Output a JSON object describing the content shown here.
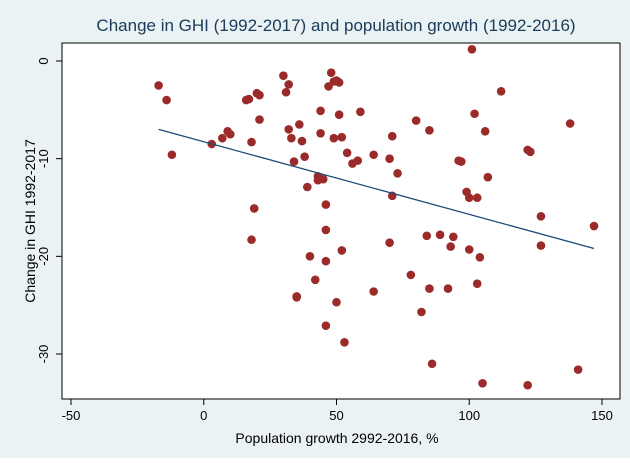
{
  "chart_data": {
    "type": "scatter",
    "title": "Change in GHI (1992-2017) and population growth (1992-2016)",
    "xlabel": "Population growth 2992-2016, %",
    "ylabel": "Change in GHI 1992-2017",
    "xlim": [
      -50,
      150
    ],
    "ylim": [
      -34,
      1.5
    ],
    "xticks": [
      -50,
      0,
      50,
      100,
      150
    ],
    "yticks": [
      0,
      -10,
      -20,
      -30
    ],
    "grid": false,
    "legend": "none",
    "colors": {
      "background": "#eaf2f3",
      "plot_area": "#ffffff",
      "marker": "#9b2a2a",
      "fit_line": "#1a4a78"
    },
    "series": [
      {
        "values": [
          [
            -17,
            -2.5
          ],
          [
            -14,
            -4
          ],
          [
            -12,
            -9.6
          ],
          [
            3,
            -8.5
          ],
          [
            7,
            -7.9
          ],
          [
            9,
            -7.2
          ],
          [
            10,
            -7.5
          ],
          [
            16,
            -4
          ],
          [
            17,
            -3.9
          ],
          [
            18,
            -8.3
          ],
          [
            18,
            -18.3
          ],
          [
            19,
            -15.1
          ],
          [
            20,
            -3.3
          ],
          [
            21,
            -3.5
          ],
          [
            21,
            -6
          ],
          [
            30,
            -1.5
          ],
          [
            31,
            -3.2
          ],
          [
            32,
            -2.4
          ],
          [
            32,
            -7
          ],
          [
            33,
            -7.9
          ],
          [
            34,
            -10.3
          ],
          [
            35,
            -24.1
          ],
          [
            35,
            -24.2
          ],
          [
            36,
            -6.5
          ],
          [
            37,
            -8.2
          ],
          [
            38,
            -9.8
          ],
          [
            39,
            -12.9
          ],
          [
            40,
            -20
          ],
          [
            42,
            -22.4
          ],
          [
            43,
            -11.8
          ],
          [
            43,
            -12.2
          ],
          [
            44,
            -7.4
          ],
          [
            44,
            -5.1
          ],
          [
            45,
            -12.1
          ],
          [
            46,
            -14.7
          ],
          [
            46,
            -17.3
          ],
          [
            46,
            -20.5
          ],
          [
            46,
            -27.1
          ],
          [
            47,
            -2.6
          ],
          [
            48,
            -1.2
          ],
          [
            49,
            -2.1
          ],
          [
            49,
            -7.9
          ],
          [
            50,
            -2
          ],
          [
            50,
            -24.7
          ],
          [
            51,
            -2.2
          ],
          [
            51,
            -5.5
          ],
          [
            52,
            -19.4
          ],
          [
            52,
            -7.8
          ],
          [
            53,
            -28.8
          ],
          [
            54,
            -9.4
          ],
          [
            56,
            -10.5
          ],
          [
            58,
            -10.2
          ],
          [
            59,
            -5.2
          ],
          [
            64,
            -9.6
          ],
          [
            64,
            -23.6
          ],
          [
            70,
            -10
          ],
          [
            70,
            -18.6
          ],
          [
            71,
            -13.8
          ],
          [
            71,
            -7.7
          ],
          [
            73,
            -11.5
          ],
          [
            78,
            -21.9
          ],
          [
            80,
            -6.1
          ],
          [
            82,
            -25.7
          ],
          [
            84,
            -17.9
          ],
          [
            85,
            -23.3
          ],
          [
            85,
            -7.1
          ],
          [
            86,
            -31
          ],
          [
            89,
            -17.8
          ],
          [
            92,
            -23.3
          ],
          [
            93,
            -19
          ],
          [
            94,
            -18
          ],
          [
            96,
            -10.2
          ],
          [
            97,
            -10.3
          ],
          [
            99,
            -13.4
          ],
          [
            100,
            -19.3
          ],
          [
            100,
            -14
          ],
          [
            101,
            1.2
          ],
          [
            102,
            -5.4
          ],
          [
            103,
            -22.8
          ],
          [
            103,
            -14
          ],
          [
            104,
            -20.1
          ],
          [
            105,
            -33
          ],
          [
            106,
            -7.2
          ],
          [
            107,
            -11.9
          ],
          [
            112,
            -3.1
          ],
          [
            122,
            -9.1
          ],
          [
            123,
            -9.3
          ],
          [
            122,
            -33.2
          ],
          [
            127,
            -15.9
          ],
          [
            127,
            -18.9
          ],
          [
            138,
            -6.4
          ],
          [
            141,
            -31.6
          ],
          [
            147,
            -16.9
          ]
        ]
      }
    ],
    "fit_line": {
      "x": [
        -17,
        147
      ],
      "y": [
        -7.0,
        -19.2
      ]
    }
  }
}
